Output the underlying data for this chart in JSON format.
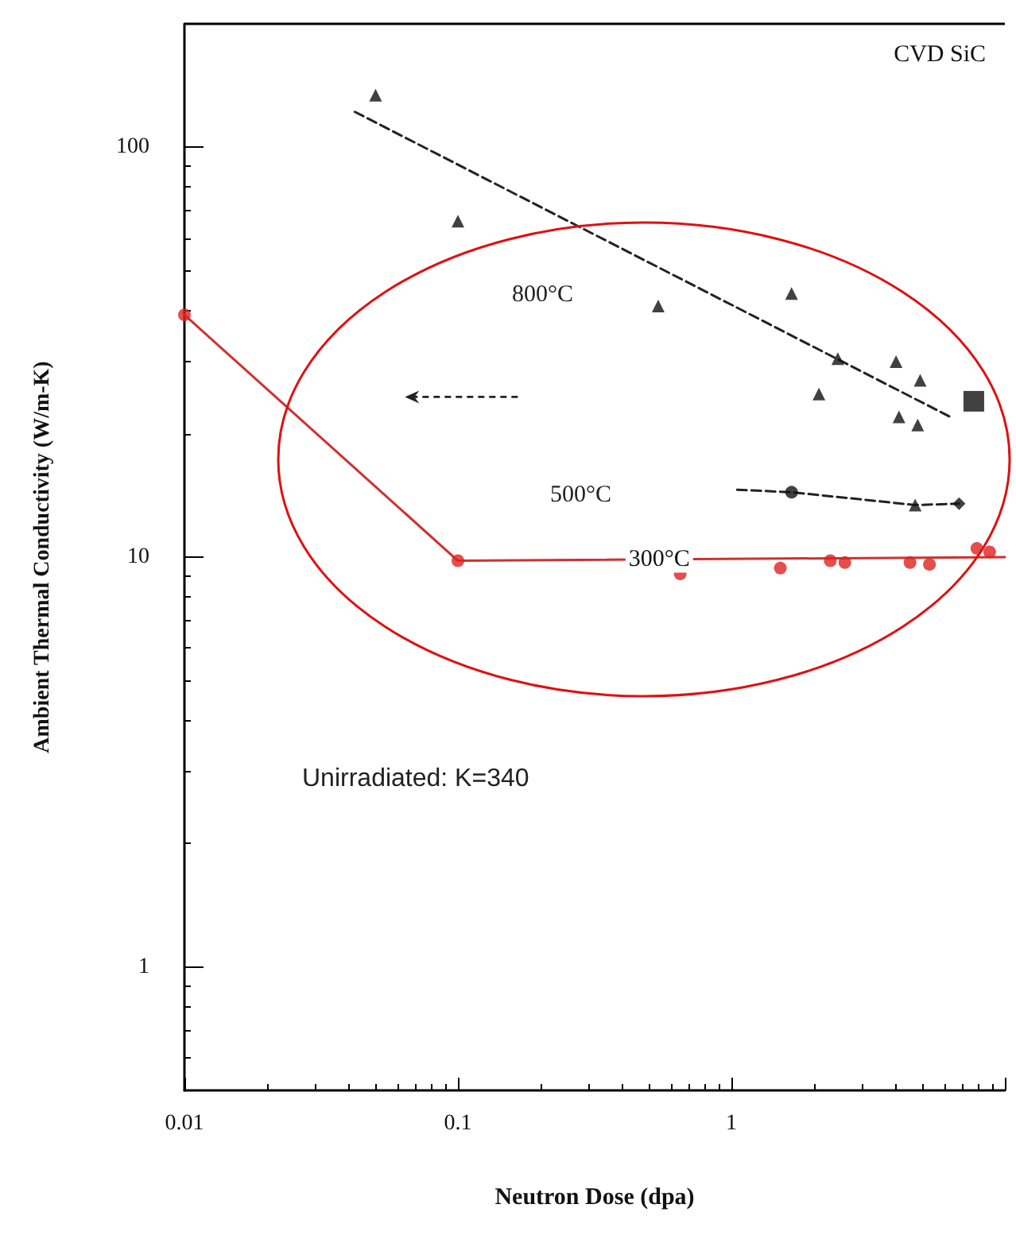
{
  "chart_data": {
    "type": "scatter",
    "title": "CVD SiC",
    "xlabel": "Neutron Dose (dpa)",
    "ylabel": "Ambient Thermal Conductivity (W/m-K)",
    "log": "xy",
    "xlim": [
      0.01,
      10
    ],
    "ylim": [
      0.5,
      200
    ],
    "xticks": [
      0.01,
      0.1,
      1,
      {
        "value": 10,
        "label": null
      }
    ],
    "yticks": [
      1,
      10,
      100
    ],
    "series": [
      {
        "type": "line",
        "color": "#222222",
        "line_style": "dashed",
        "marker": "none",
        "x": [
          0.042,
          6.3
        ],
        "values": [
          122,
          22
        ]
      },
      {
        "color": "#111111",
        "marker": "triangle",
        "x": [
          0.05,
          0.1,
          0.54,
          1.66,
          2.45,
          2.09,
          4.0,
          4.9,
          4.1,
          4.8
        ],
        "values": [
          134,
          66,
          41,
          44,
          30.5,
          25,
          30,
          27,
          22,
          21
        ]
      },
      {
        "type": "scatter",
        "color": "#111111",
        "marker": "square",
        "x": [
          7.7
        ],
        "values": [
          24
        ]
      },
      {
        "type": "line",
        "color": "#222222",
        "line_style": "dashed",
        "marker": "none",
        "x": [
          1.05,
          1.66,
          4.7,
          6.8
        ],
        "values": [
          14.6,
          14.4,
          13.4,
          13.5
        ]
      },
      {
        "type": "scatter",
        "color": "#111111",
        "marker": "circle",
        "x": [
          1.66
        ],
        "values": [
          14.4
        ]
      },
      {
        "type": "scatter",
        "color": "#111111",
        "marker": "triangle",
        "x": [
          4.7
        ],
        "values": [
          13.4
        ]
      },
      {
        "type": "scatter",
        "color": "#111111",
        "marker": "diamond",
        "x": [
          6.8
        ],
        "values": [
          13.5
        ]
      },
      {
        "type": "line",
        "color": "#d03030",
        "line_style": "solid",
        "marker": "none",
        "x": [
          0.01,
          0.1,
          10
        ],
        "values": [
          39,
          9.8,
          10
        ]
      },
      {
        "type": "scatter",
        "color": "#e02020",
        "marker": "circle",
        "x": [
          0.01,
          0.1,
          0.65,
          1.51,
          2.3,
          2.6,
          4.5,
          5.3,
          7.9,
          8.8
        ],
        "values": [
          39,
          9.8,
          9.1,
          9.4,
          9.8,
          9.7,
          9.7,
          9.6,
          10.5,
          10.3
        ]
      }
    ],
    "annotations": [
      "800°C",
      "500°C",
      {
        "text": "300°C",
        "x": 0.41,
        "y": 9.8
      },
      "Unirradiated: K=340"
    ]
  }
}
